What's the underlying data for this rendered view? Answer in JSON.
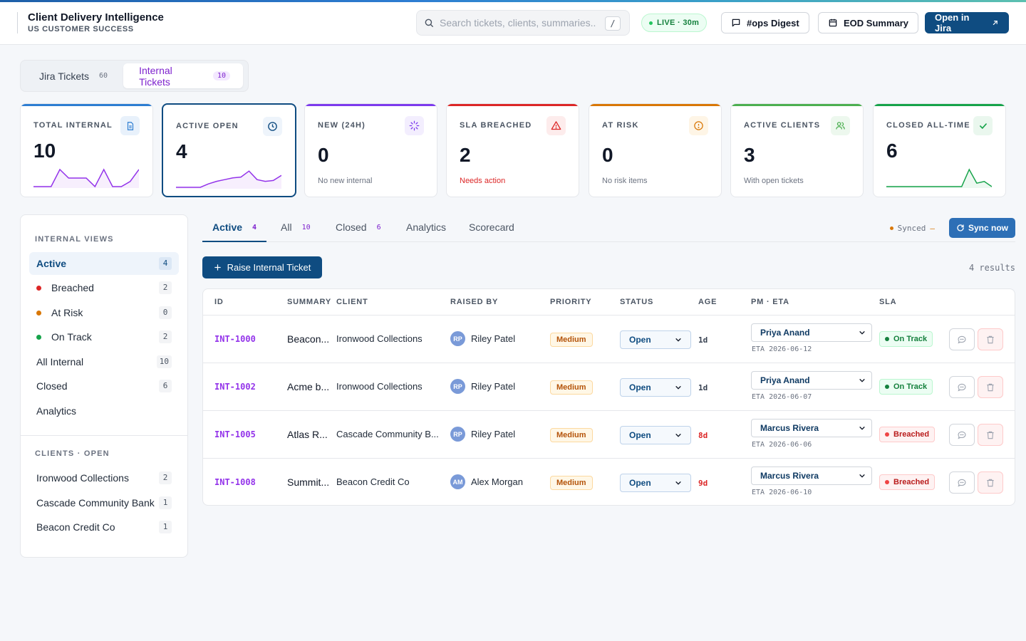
{
  "header": {
    "title": "Client Delivery Intelligence",
    "subtitle": "US CUSTOMER SUCCESS",
    "search_placeholder": "Search tickets, clients, summaries...",
    "search_shortcut": "/",
    "live_label": "LIVE · 30m",
    "ops_digest_label": "#ops Digest",
    "eod_summary_label": "EOD Summary",
    "open_jira_label": "Open in Jira"
  },
  "source_tabs": [
    {
      "label": "Jira Tickets",
      "count": "60"
    },
    {
      "label": "Internal Tickets",
      "count": "10"
    }
  ],
  "kpis": [
    {
      "label": "TOTAL INTERNAL",
      "value": "10",
      "sub": "",
      "color": "#2d7dd2",
      "icon": "document-icon",
      "spark": [
        0,
        0,
        0,
        1,
        0.5,
        0.5,
        0.5,
        0,
        1,
        0,
        0,
        0.3,
        1
      ]
    },
    {
      "label": "ACTIVE OPEN",
      "value": "4",
      "sub": "",
      "color": "#0f4c81",
      "icon": "clock-icon",
      "spark": [
        0,
        0,
        0,
        0,
        0.2,
        0.35,
        0.45,
        0.55,
        0.6,
        0.95,
        0.45,
        0.35,
        0.4,
        0.7
      ]
    },
    {
      "label": "NEW (24H)",
      "value": "0",
      "sub": "No new internal",
      "color": "#7c3aed",
      "icon": "loader-icon"
    },
    {
      "label": "SLA BREACHED",
      "value": "2",
      "sub": "Needs action",
      "color": "#dc2626",
      "icon": "alert-triangle-icon"
    },
    {
      "label": "AT RISK",
      "value": "0",
      "sub": "No risk items",
      "color": "#d97706",
      "icon": "alert-circle-icon"
    },
    {
      "label": "ACTIVE CLIENTS",
      "value": "3",
      "sub": "With open tickets",
      "color": "#4caf50",
      "icon": "users-icon"
    },
    {
      "label": "CLOSED ALL-TIME",
      "value": "6",
      "sub": "",
      "color": "#16a34a",
      "icon": "check-icon",
      "spark": [
        0,
        0,
        0,
        0,
        0,
        0,
        0,
        0,
        0,
        0,
        0,
        1,
        0.2,
        0.3,
        0
      ]
    }
  ],
  "sidebar": {
    "views_heading": "INTERNAL VIEWS",
    "views": [
      {
        "label": "Active",
        "count": "4",
        "dot": ""
      },
      {
        "label": "Breached",
        "count": "2",
        "dot": "#dc2626"
      },
      {
        "label": "At Risk",
        "count": "0",
        "dot": "#d97706"
      },
      {
        "label": "On Track",
        "count": "2",
        "dot": "#16a34a"
      },
      {
        "label": "All Internal",
        "count": "10",
        "dot": ""
      },
      {
        "label": "Closed",
        "count": "6",
        "dot": ""
      },
      {
        "label": "Analytics",
        "count": "",
        "dot": ""
      }
    ],
    "clients_heading": "CLIENTS · OPEN",
    "clients": [
      {
        "label": "Ironwood Collections",
        "count": "2"
      },
      {
        "label": "Cascade Community Bank",
        "count": "1"
      },
      {
        "label": "Beacon Credit Co",
        "count": "1"
      }
    ]
  },
  "view_tabs": [
    {
      "label": "Active",
      "count": "4"
    },
    {
      "label": "All",
      "count": "10"
    },
    {
      "label": "Closed",
      "count": "6"
    },
    {
      "label": "Analytics",
      "count": ""
    },
    {
      "label": "Scorecard",
      "count": ""
    }
  ],
  "sync": {
    "status": "Synced",
    "separator": "–",
    "button_label": "Sync now"
  },
  "raise_label": "Raise Internal Ticket",
  "results_label": "4 results",
  "table": {
    "columns": [
      "ID",
      "SUMMARY",
      "CLIENT",
      "RAISED BY",
      "PRIORITY",
      "STATUS",
      "AGE",
      "PM · ETA",
      "SLA"
    ],
    "rows": [
      {
        "id": "INT-1000",
        "summary": "Beacon...",
        "client": "Ironwood Collections",
        "initials": "RP",
        "raised_by": "Riley Patel",
        "priority": "Medium",
        "status": "Open",
        "age": "1d",
        "age_late": false,
        "pm": "Priya Anand",
        "eta": "ETA 2026-06-12",
        "sla": "On Track",
        "sla_state": "ok"
      },
      {
        "id": "INT-1002",
        "summary": "Acme b...",
        "client": "Ironwood Collections",
        "initials": "RP",
        "raised_by": "Riley Patel",
        "priority": "Medium",
        "status": "Open",
        "age": "1d",
        "age_late": false,
        "pm": "Priya Anand",
        "eta": "ETA 2026-06-07",
        "sla": "On Track",
        "sla_state": "ok"
      },
      {
        "id": "INT-1005",
        "summary": "Atlas R...",
        "client": "Cascade Community B...",
        "initials": "RP",
        "raised_by": "Riley Patel",
        "priority": "Medium",
        "status": "Open",
        "age": "8d",
        "age_late": true,
        "pm": "Marcus Rivera",
        "eta": "ETA 2026-06-06",
        "sla": "Breached",
        "sla_state": "bad"
      },
      {
        "id": "INT-1008",
        "summary": "Summit...",
        "client": "Beacon Credit Co",
        "initials": "AM",
        "raised_by": "Alex Morgan",
        "priority": "Medium",
        "status": "Open",
        "age": "9d",
        "age_late": true,
        "pm": "Marcus Rivera",
        "eta": "ETA 2026-06-10",
        "sla": "Breached",
        "sla_state": "bad"
      }
    ]
  }
}
